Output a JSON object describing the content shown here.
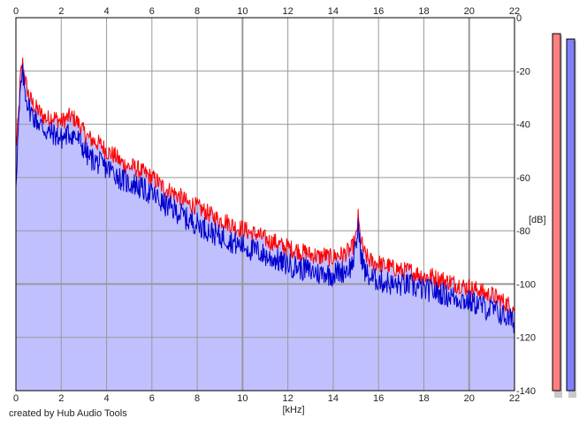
{
  "chart_data": {
    "type": "area",
    "title": "",
    "xlabel": "[kHz]",
    "ylabel": "[dB]",
    "xlim": [
      0,
      22
    ],
    "ylim": [
      -140,
      0
    ],
    "x_ticks": [
      0,
      2,
      4,
      6,
      8,
      10,
      12,
      14,
      16,
      18,
      20,
      22
    ],
    "y_ticks": [
      0,
      -20,
      -40,
      -60,
      -80,
      -100,
      -120,
      -140
    ],
    "grid": true,
    "series": [
      {
        "color": "#ff0000",
        "points": [
          [
            0.0,
            -48
          ],
          [
            0.1,
            -38
          ],
          [
            0.2,
            -21
          ],
          [
            0.3,
            -16
          ],
          [
            0.4,
            -22
          ],
          [
            0.5,
            -26
          ],
          [
            0.6,
            -29
          ],
          [
            0.8,
            -32
          ],
          [
            1.0,
            -34
          ],
          [
            1.2,
            -36
          ],
          [
            1.4,
            -37
          ],
          [
            1.6,
            -36
          ],
          [
            1.8,
            -37
          ],
          [
            2.0,
            -38
          ],
          [
            2.2,
            -37
          ],
          [
            2.4,
            -36
          ],
          [
            2.6,
            -37
          ],
          [
            2.8,
            -39
          ],
          [
            3.0,
            -42
          ],
          [
            3.2,
            -44
          ],
          [
            3.4,
            -45
          ],
          [
            3.6,
            -46
          ],
          [
            3.8,
            -47
          ],
          [
            4.0,
            -49
          ],
          [
            4.2,
            -50
          ],
          [
            4.4,
            -51
          ],
          [
            4.6,
            -53
          ],
          [
            4.8,
            -54
          ],
          [
            5.0,
            -55
          ],
          [
            5.2,
            -55
          ],
          [
            5.4,
            -56
          ],
          [
            5.6,
            -57
          ],
          [
            5.8,
            -58
          ],
          [
            6.0,
            -59
          ],
          [
            6.2,
            -60
          ],
          [
            6.4,
            -62
          ],
          [
            6.6,
            -63
          ],
          [
            6.8,
            -64
          ],
          [
            7.0,
            -65
          ],
          [
            7.2,
            -66
          ],
          [
            7.4,
            -67
          ],
          [
            7.6,
            -69
          ],
          [
            7.8,
            -69
          ],
          [
            8.0,
            -70
          ],
          [
            8.2,
            -71
          ],
          [
            8.4,
            -72
          ],
          [
            8.6,
            -73
          ],
          [
            8.8,
            -74
          ],
          [
            9.0,
            -75
          ],
          [
            9.2,
            -75
          ],
          [
            9.4,
            -76
          ],
          [
            9.6,
            -77
          ],
          [
            9.8,
            -78
          ],
          [
            10.0,
            -78
          ],
          [
            10.2,
            -79
          ],
          [
            10.4,
            -80
          ],
          [
            10.6,
            -80
          ],
          [
            10.8,
            -81
          ],
          [
            11.0,
            -82
          ],
          [
            11.2,
            -83
          ],
          [
            11.4,
            -83
          ],
          [
            11.6,
            -84
          ],
          [
            11.8,
            -85
          ],
          [
            12.0,
            -85
          ],
          [
            12.2,
            -86
          ],
          [
            12.4,
            -86
          ],
          [
            12.6,
            -87
          ],
          [
            12.8,
            -87
          ],
          [
            13.0,
            -88
          ],
          [
            13.2,
            -88
          ],
          [
            13.4,
            -89
          ],
          [
            13.6,
            -88
          ],
          [
            13.8,
            -89
          ],
          [
            14.0,
            -89
          ],
          [
            14.2,
            -88
          ],
          [
            14.4,
            -88
          ],
          [
            14.6,
            -87
          ],
          [
            14.8,
            -86
          ],
          [
            15.0,
            -82
          ],
          [
            15.1,
            -74
          ],
          [
            15.2,
            -82
          ],
          [
            15.4,
            -88
          ],
          [
            15.6,
            -90
          ],
          [
            15.8,
            -91
          ],
          [
            16.0,
            -91
          ],
          [
            16.2,
            -92
          ],
          [
            16.4,
            -92
          ],
          [
            16.6,
            -93
          ],
          [
            16.8,
            -93
          ],
          [
            17.0,
            -94
          ],
          [
            17.2,
            -94
          ],
          [
            17.4,
            -94
          ],
          [
            17.6,
            -95
          ],
          [
            17.8,
            -95
          ],
          [
            18.0,
            -96
          ],
          [
            18.2,
            -96
          ],
          [
            18.4,
            -96
          ],
          [
            18.6,
            -97
          ],
          [
            18.8,
            -97
          ],
          [
            19.0,
            -98
          ],
          [
            19.2,
            -98
          ],
          [
            19.4,
            -99
          ],
          [
            19.6,
            -99
          ],
          [
            19.8,
            -100
          ],
          [
            20.0,
            -100
          ],
          [
            20.2,
            -101
          ],
          [
            20.4,
            -101
          ],
          [
            20.6,
            -102
          ],
          [
            20.8,
            -103
          ],
          [
            21.0,
            -103
          ],
          [
            21.2,
            -104
          ],
          [
            21.4,
            -105
          ],
          [
            21.6,
            -106
          ],
          [
            21.8,
            -107
          ],
          [
            22.0,
            -108
          ]
        ]
      },
      {
        "color": "#0000cc",
        "points": [
          [
            0.0,
            -60
          ],
          [
            0.1,
            -42
          ],
          [
            0.2,
            -26
          ],
          [
            0.3,
            -20
          ],
          [
            0.4,
            -26
          ],
          [
            0.5,
            -30
          ],
          [
            0.6,
            -33
          ],
          [
            0.8,
            -36
          ],
          [
            1.0,
            -38
          ],
          [
            1.2,
            -40
          ],
          [
            1.4,
            -42
          ],
          [
            1.6,
            -42
          ],
          [
            1.8,
            -43
          ],
          [
            2.0,
            -44
          ],
          [
            2.2,
            -43
          ],
          [
            2.4,
            -42
          ],
          [
            2.6,
            -43
          ],
          [
            2.8,
            -45
          ],
          [
            3.0,
            -48
          ],
          [
            3.2,
            -51
          ],
          [
            3.4,
            -52
          ],
          [
            3.6,
            -53
          ],
          [
            3.8,
            -54
          ],
          [
            4.0,
            -55
          ],
          [
            4.2,
            -56
          ],
          [
            4.4,
            -57
          ],
          [
            4.6,
            -59
          ],
          [
            4.8,
            -60
          ],
          [
            5.0,
            -61
          ],
          [
            5.2,
            -61
          ],
          [
            5.4,
            -62
          ],
          [
            5.6,
            -63
          ],
          [
            5.8,
            -64
          ],
          [
            6.0,
            -65
          ],
          [
            6.2,
            -66
          ],
          [
            6.4,
            -68
          ],
          [
            6.6,
            -69
          ],
          [
            6.8,
            -70
          ],
          [
            7.0,
            -71
          ],
          [
            7.2,
            -72
          ],
          [
            7.4,
            -73
          ],
          [
            7.6,
            -75
          ],
          [
            7.8,
            -75
          ],
          [
            8.0,
            -76
          ],
          [
            8.2,
            -77
          ],
          [
            8.4,
            -78
          ],
          [
            8.6,
            -79
          ],
          [
            8.8,
            -80
          ],
          [
            9.0,
            -81
          ],
          [
            9.2,
            -81
          ],
          [
            9.4,
            -82
          ],
          [
            9.6,
            -83
          ],
          [
            9.8,
            -84
          ],
          [
            10.0,
            -84
          ],
          [
            10.2,
            -85
          ],
          [
            10.4,
            -86
          ],
          [
            10.6,
            -86
          ],
          [
            10.8,
            -87
          ],
          [
            11.0,
            -88
          ],
          [
            11.2,
            -89
          ],
          [
            11.4,
            -89
          ],
          [
            11.6,
            -90
          ],
          [
            11.8,
            -91
          ],
          [
            12.0,
            -91
          ],
          [
            12.2,
            -92
          ],
          [
            12.4,
            -92
          ],
          [
            12.6,
            -93
          ],
          [
            12.8,
            -93
          ],
          [
            13.0,
            -94
          ],
          [
            13.2,
            -94
          ],
          [
            13.4,
            -95
          ],
          [
            13.6,
            -94
          ],
          [
            13.8,
            -95
          ],
          [
            14.0,
            -95
          ],
          [
            14.2,
            -94
          ],
          [
            14.4,
            -94
          ],
          [
            14.6,
            -93
          ],
          [
            14.8,
            -92
          ],
          [
            15.0,
            -86
          ],
          [
            15.1,
            -76
          ],
          [
            15.2,
            -86
          ],
          [
            15.4,
            -94
          ],
          [
            15.6,
            -96
          ],
          [
            15.8,
            -97
          ],
          [
            16.0,
            -97
          ],
          [
            16.2,
            -98
          ],
          [
            16.4,
            -98
          ],
          [
            16.6,
            -99
          ],
          [
            16.8,
            -99
          ],
          [
            17.0,
            -99
          ],
          [
            17.2,
            -99
          ],
          [
            17.4,
            -99
          ],
          [
            17.6,
            -100
          ],
          [
            17.8,
            -100
          ],
          [
            18.0,
            -101
          ],
          [
            18.2,
            -101
          ],
          [
            18.4,
            -101
          ],
          [
            18.6,
            -102
          ],
          [
            18.8,
            -102
          ],
          [
            19.0,
            -103
          ],
          [
            19.2,
            -103
          ],
          [
            19.4,
            -104
          ],
          [
            19.6,
            -104
          ],
          [
            19.8,
            -105
          ],
          [
            20.0,
            -105
          ],
          [
            20.2,
            -106
          ],
          [
            20.4,
            -106
          ],
          [
            20.6,
            -107
          ],
          [
            20.8,
            -108
          ],
          [
            21.0,
            -108
          ],
          [
            21.2,
            -109
          ],
          [
            21.4,
            -110
          ],
          [
            21.6,
            -111
          ],
          [
            21.8,
            -112
          ],
          [
            22.0,
            -113
          ]
        ]
      }
    ],
    "level_meters": [
      {
        "color": "#ff8080",
        "level_db": -6
      },
      {
        "color": "#8080ff",
        "level_db": -8
      }
    ]
  },
  "credit": "created by Hub Audio Tools",
  "colors": {
    "fill": "#c0c0ff",
    "grid": "#999999",
    "axis": "#000000"
  }
}
